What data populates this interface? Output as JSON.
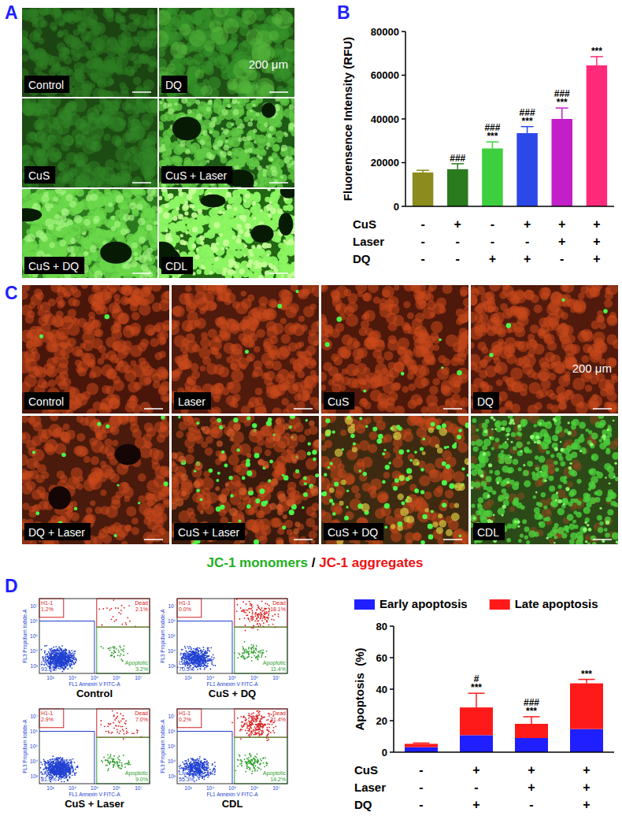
{
  "panel_labels": [
    "A",
    "B",
    "C",
    "D"
  ],
  "panel_a": {
    "images": [
      "Control",
      "DQ",
      "CuS",
      "CuS + Laser",
      "CuS + DQ",
      "CDL"
    ],
    "scale_bar": "200 μm"
  },
  "panel_c": {
    "images": [
      "Control",
      "Laser",
      "CuS",
      "DQ",
      "DQ + Laser",
      "CuS + Laser",
      "CuS + DQ",
      "CDL"
    ],
    "scale_bar": "200 μm",
    "legend": {
      "monomers": "JC-1 monomers",
      "separator": " / ",
      "aggregates": "JC-1 aggregates"
    }
  },
  "panel_d_flow": {
    "x_label": "FL1 Annexin V FITC-A",
    "y_label": "FL3 Propidium Iodide-A",
    "ticks": [
      "10³",
      "10⁴",
      "10⁵",
      "10⁶",
      "10⁷"
    ],
    "plots": [
      {
        "title": "Control",
        "gates": [
          {
            "name": "H1-1",
            "value": "1.2%"
          },
          {
            "name": "Dead",
            "value": "2.1%"
          },
          {
            "name": "Live",
            "value": "93.5%"
          },
          {
            "name": "Apoptotic",
            "value": "3.2%"
          }
        ]
      },
      {
        "title": "CuS + DQ",
        "gates": [
          {
            "name": "H1-1",
            "value": "0.0%"
          },
          {
            "name": "Dead",
            "value": "18.1%"
          },
          {
            "name": "Live",
            "value": "70.5%"
          },
          {
            "name": "Apoptotic",
            "value": "11.4%"
          }
        ]
      },
      {
        "title": "CuS + Laser",
        "gates": [
          {
            "name": "H1-1",
            "value": "2.9%"
          },
          {
            "name": "Dead",
            "value": "7.0%"
          },
          {
            "name": "Live",
            "value": "81.0%"
          },
          {
            "name": "Apoptotic",
            "value": "9.0%"
          }
        ]
      },
      {
        "title": "CDL",
        "gates": [
          {
            "name": "H1-1",
            "value": "0.2%"
          },
          {
            "name": "Dead",
            "value": "31.4%"
          },
          {
            "name": "Live",
            "value": "55.3%"
          },
          {
            "name": "Apoptotic",
            "value": "14.2%"
          }
        ]
      }
    ]
  },
  "chart_data": [
    {
      "type": "bar",
      "y_label": "Fluorensence Intensity (RFU)",
      "categories": [
        null,
        null,
        null,
        null,
        null,
        null
      ],
      "values": [
        15500,
        17000,
        26500,
        33500,
        40000,
        64500
      ],
      "errors": [
        1000,
        2500,
        3000,
        3000,
        5000,
        4000
      ],
      "colors": [
        "#8c8c1e",
        "#2a7a1e",
        "#3ecf3e",
        "#2d48e8",
        "#c21fc9",
        "#ff2a7a"
      ],
      "ylim": [
        0,
        80000
      ],
      "yticks": [
        0,
        20000,
        40000,
        60000,
        80000
      ],
      "significance": [
        null,
        [
          "###"
        ],
        [
          "###",
          "***"
        ],
        [
          "###",
          "***"
        ],
        [
          "###",
          "***"
        ],
        [
          "***"
        ]
      ],
      "conditions": [
        {
          "label": "CuS",
          "signs": [
            "-",
            "+",
            "-",
            "+",
            "+",
            "+"
          ]
        },
        {
          "label": "Laser",
          "signs": [
            "-",
            "-",
            "-",
            "-",
            "+",
            "+"
          ]
        },
        {
          "label": "DQ",
          "signs": [
            "-",
            "-",
            "+",
            "+",
            "-",
            "+"
          ]
        }
      ]
    },
    {
      "type": "bar",
      "stacked": true,
      "legend": "top",
      "y_label": "Apoptosis  (%)",
      "categories": [
        null,
        null,
        null,
        null
      ],
      "series": [
        {
          "name": "Early apoptosis",
          "color": "#1f1fff",
          "values": [
            3.2,
            10.8,
            9.0,
            14.7
          ]
        },
        {
          "name": "Late apoptosis",
          "color": "#ff1a1a",
          "values": [
            2.1,
            17.6,
            9.0,
            29.0
          ],
          "errors": [
            0.5,
            9.0,
            4.5,
            2.5
          ]
        }
      ],
      "ylim": [
        0,
        80
      ],
      "yticks": [
        0,
        20,
        40,
        60,
        80
      ],
      "significance": [
        null,
        [
          "#",
          "***"
        ],
        [
          "###",
          "***"
        ],
        [
          "***"
        ]
      ],
      "conditions": [
        {
          "label": "CuS",
          "signs": [
            "-",
            "+",
            "+",
            "+"
          ]
        },
        {
          "label": "Laser",
          "signs": [
            "-",
            "-",
            "+",
            "+"
          ]
        },
        {
          "label": "DQ",
          "signs": [
            "-",
            "+",
            "-",
            "+"
          ]
        }
      ]
    }
  ]
}
